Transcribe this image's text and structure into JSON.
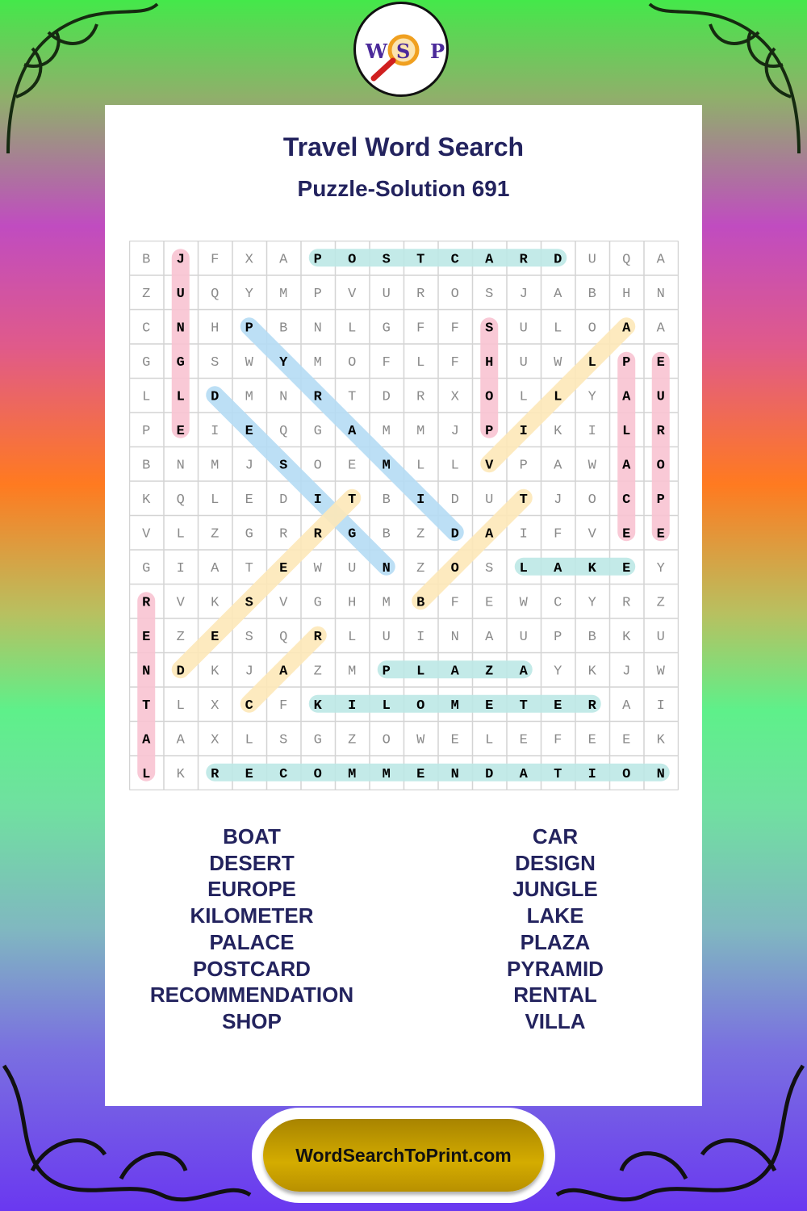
{
  "logo": {
    "letters": [
      "W",
      "S",
      "P"
    ]
  },
  "header": {
    "title": "Travel Word Search",
    "subtitle": "Puzzle-Solution 691"
  },
  "grid": [
    "BJFXAPOSTCARDUQA",
    "ZUQYMPVUROSJABHN",
    "CNHPBNLGFFSULOAA",
    "GGSWYMOFLFHUWLPE",
    "LLDMNRTDRXOLLYAU",
    "PEIEQGAMMJPIKILR",
    "BNMJSOEMLLVPAWAO",
    "KQLEDITBIDUTJOCP",
    "VLZGRRGBZDAIFVEE",
    "GIATEWUNZOSLAKEY",
    "RVKSVGHMBFEWCYRZ",
    "EZESQRLUINAUPBKU",
    "NDKJAZMPLAZAYKJW",
    "TLXCFKILOMETERAI",
    "AAXLSGZOWELEFEEK",
    "LKRECOMMENDATION"
  ],
  "solutions": [
    {
      "word": "POSTCARD",
      "start": [
        0,
        5
      ],
      "end": [
        0,
        12
      ],
      "color": "#bde8e6"
    },
    {
      "word": "JUNGLE",
      "start": [
        0,
        1
      ],
      "end": [
        5,
        1
      ],
      "color": "#f8c3d1"
    },
    {
      "word": "SHOP",
      "start": [
        2,
        10
      ],
      "end": [
        5,
        10
      ],
      "color": "#f8c3d1"
    },
    {
      "word": "PALACE",
      "start": [
        3,
        14
      ],
      "end": [
        8,
        14
      ],
      "color": "#f8c3d1"
    },
    {
      "word": "EUROPE",
      "start": [
        3,
        15
      ],
      "end": [
        8,
        15
      ],
      "color": "#f8c3d1"
    },
    {
      "word": "RENTAL",
      "start": [
        10,
        0
      ],
      "end": [
        15,
        0
      ],
      "color": "#f8c3d1"
    },
    {
      "word": "LAKE",
      "start": [
        9,
        11
      ],
      "end": [
        9,
        14
      ],
      "color": "#bde8e6"
    },
    {
      "word": "PLAZA",
      "start": [
        12,
        7
      ],
      "end": [
        12,
        11
      ],
      "color": "#bde8e6"
    },
    {
      "word": "KILOMETER",
      "start": [
        13,
        5
      ],
      "end": [
        13,
        13
      ],
      "color": "#bde8e6"
    },
    {
      "word": "RECOMMENDATION",
      "start": [
        15,
        2
      ],
      "end": [
        15,
        15
      ],
      "color": "#bde8e6"
    },
    {
      "word": "PYRAMID",
      "start": [
        2,
        3
      ],
      "end": [
        8,
        9
      ],
      "color": "#b5dbf4"
    },
    {
      "word": "DESIGN",
      "start": [
        4,
        2
      ],
      "end": [
        9,
        7
      ],
      "color": "#b5dbf4"
    },
    {
      "word": "VILLA",
      "start": [
        6,
        10
      ],
      "end": [
        2,
        14
      ],
      "color": "#fde8b8"
    },
    {
      "word": "DESERT",
      "start": [
        12,
        1
      ],
      "end": [
        7,
        6
      ],
      "color": "#fde8b8"
    },
    {
      "word": "BOAT",
      "start": [
        10,
        8
      ],
      "end": [
        7,
        11
      ],
      "color": "#fde8b8"
    },
    {
      "word": "CAR",
      "start": [
        13,
        3
      ],
      "end": [
        11,
        5
      ],
      "color": "#fde8b8"
    }
  ],
  "word_list": {
    "left": [
      "BOAT",
      "DESERT",
      "EUROPE",
      "KILOMETER",
      "PALACE",
      "POSTCARD",
      "RECOMMENDATION",
      "SHOP"
    ],
    "right": [
      "CAR",
      "DESIGN",
      "JUNGLE",
      "LAKE",
      "PLAZA",
      "PYRAMID",
      "RENTAL",
      "VILLA"
    ]
  },
  "footer": {
    "site_button": "WordSearchToPrint.com"
  }
}
